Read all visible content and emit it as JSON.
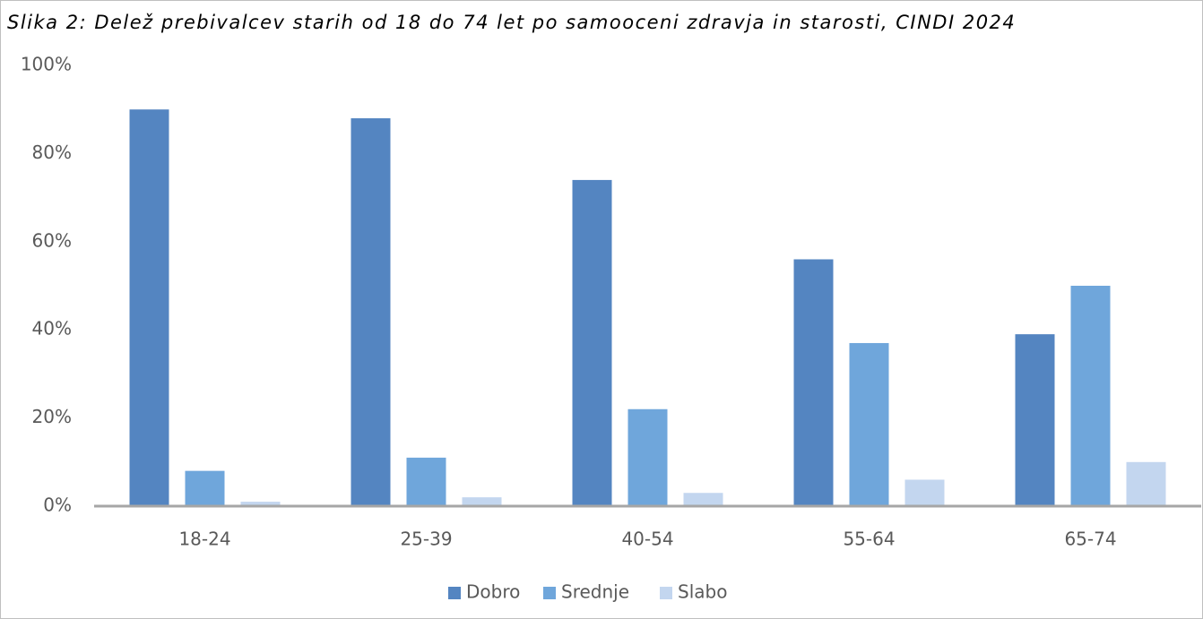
{
  "chart_data": {
    "type": "bar",
    "title": "Slika 2: Delež prebivalcev starih od 18 do 74 let po samooceni zdravja in starosti, CINDI 2024",
    "categories": [
      "18-24",
      "25-39",
      "40-54",
      "55-64",
      "65-74"
    ],
    "series": [
      {
        "name": "Dobro",
        "color": "#5485c1",
        "values": [
          90,
          88,
          74,
          56,
          39
        ]
      },
      {
        "name": "Srednje",
        "color": "#6fa6db",
        "values": [
          8,
          11,
          22,
          37,
          50
        ]
      },
      {
        "name": "Slabo",
        "color": "#c3d6ef",
        "values": [
          1,
          2,
          3,
          6,
          10
        ]
      }
    ],
    "ylim": [
      0,
      100
    ],
    "yticks": [
      {
        "value": 0,
        "label": "0%"
      },
      {
        "value": 20,
        "label": "20%"
      },
      {
        "value": 40,
        "label": "40%"
      },
      {
        "value": 60,
        "label": "60%"
      },
      {
        "value": 80,
        "label": "80%"
      },
      {
        "value": 100,
        "label": "100%"
      }
    ],
    "grid": false,
    "legend_position": "bottom"
  }
}
